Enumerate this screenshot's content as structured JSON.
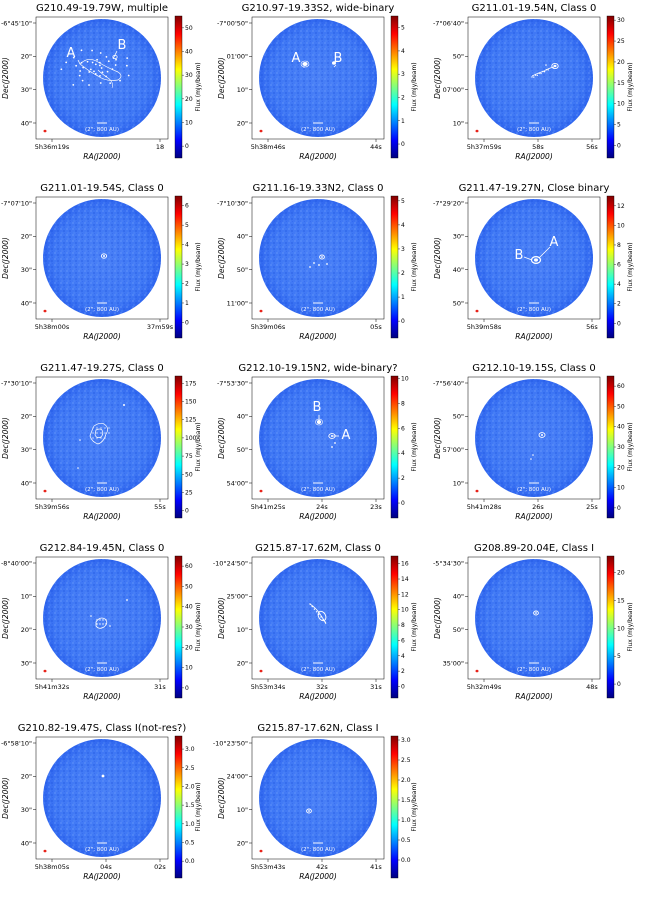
{
  "colors": {
    "disk_base": "#2b5ff2",
    "disk_light": "#4f86f7",
    "contour": "#ffffff",
    "beam": "#e8231a",
    "colormap": [
      "#00007f",
      "#0000ff",
      "#0080ff",
      "#00ffff",
      "#80ff80",
      "#ffff00",
      "#ff8000",
      "#ff0000",
      "#7f0000"
    ]
  },
  "common": {
    "xlabel": "RA(J2000)",
    "ylabel": "Dec(J2000)",
    "cbar_label": "Flux (mJy/beam)",
    "scalebar_label": "(2\"; 800 AU)"
  },
  "chart_data": [
    {
      "type": "heatmap",
      "title": "G210.49-19.79W, multiple",
      "xticks": [
        "5h36m19s",
        "18"
      ],
      "yticks": [
        "-6°45'10\"",
        "20\"",
        "30\"",
        "40\""
      ],
      "cbar_ticks": [
        "0",
        "10",
        "20",
        "30",
        "40",
        "50"
      ],
      "cbar_range": [
        -5,
        55
      ],
      "labels": [
        {
          "text": "A"
        },
        {
          "text": "B"
        }
      ]
    },
    {
      "type": "heatmap",
      "title": "G210.97-19.33S2, wide-binary",
      "xticks": [
        "5h38m46s",
        "44s"
      ],
      "yticks": [
        "-7°00'50\"",
        "01'00\"",
        "10\"",
        "20\""
      ],
      "cbar_ticks": [
        "0",
        "1",
        "2",
        "3",
        "4",
        "5"
      ],
      "cbar_range": [
        -0.6,
        5.5
      ],
      "labels": [
        {
          "text": "A"
        },
        {
          "text": "B"
        }
      ]
    },
    {
      "type": "heatmap",
      "title": "G211.01-19.54N, Class 0",
      "xticks": [
        "5h37m59s",
        "58s",
        "56s"
      ],
      "yticks": [
        "-7°06'40\"",
        "50\"",
        "07'00\"",
        "10\""
      ],
      "cbar_ticks": [
        "0",
        "5",
        "10",
        "15",
        "20",
        "25",
        "30"
      ],
      "cbar_range": [
        -3,
        31
      ],
      "labels": []
    },
    {
      "type": "heatmap",
      "title": "G211.01-19.54S, Class 0",
      "xticks": [
        "5h38m00s",
        "37m59s"
      ],
      "yticks": [
        "-7°07'10\"",
        "20\"",
        "30\"",
        "40\""
      ],
      "cbar_ticks": [
        "0",
        "1",
        "2",
        "3",
        "4",
        "5",
        "6"
      ],
      "cbar_range": [
        -0.8,
        6.5
      ],
      "labels": []
    },
    {
      "type": "heatmap",
      "title": "G211.16-19.33N2, Class 0",
      "xticks": [
        "5h39m06s",
        "05s"
      ],
      "yticks": [
        "-7°10'30\"",
        "40\"",
        "50\"",
        "11'00\""
      ],
      "cbar_ticks": [
        "0",
        "1",
        "2",
        "3",
        "4",
        "5"
      ],
      "cbar_range": [
        -0.7,
        5.2
      ],
      "labels": []
    },
    {
      "type": "heatmap",
      "title": "G211.47-19.27N, Close binary",
      "xticks": [
        "5h39m58s",
        "56s"
      ],
      "yticks": [
        "-7°29'20\"",
        "30\"",
        "40\"",
        "50\""
      ],
      "cbar_ticks": [
        "0",
        "2",
        "4",
        "6",
        "8",
        "10",
        "12"
      ],
      "cbar_range": [
        -1.5,
        13
      ],
      "labels": [
        {
          "text": "B"
        },
        {
          "text": "A"
        }
      ]
    },
    {
      "type": "heatmap",
      "title": "G211.47-19.27S, Class 0",
      "xticks": [
        "5h39m56s",
        "55s"
      ],
      "yticks": [
        "-7°30'10\"",
        "20\"",
        "30\"",
        "40\""
      ],
      "cbar_ticks": [
        "0",
        "25",
        "50",
        "75",
        "100",
        "125",
        "150",
        "175"
      ],
      "cbar_range": [
        -10,
        185
      ],
      "labels": []
    },
    {
      "type": "heatmap",
      "title": "G212.10-19.15N2, wide-binary?",
      "xticks": [
        "5h41m25s",
        "24s",
        "23s"
      ],
      "yticks": [
        "-7°53'30\"",
        "40\"",
        "50\"",
        "54'00\""
      ],
      "cbar_ticks": [
        "0",
        "2",
        "4",
        "6",
        "8",
        "10"
      ],
      "cbar_range": [
        -1.2,
        10.2
      ],
      "labels": [
        {
          "text": "B"
        },
        {
          "text": "A"
        }
      ]
    },
    {
      "type": "heatmap",
      "title": "G212.10-19.15S, Class 0",
      "xticks": [
        "5h41m28s",
        "26s",
        "25s"
      ],
      "yticks": [
        "-7°56'40\"",
        "50\"",
        "57'00\"",
        "10\""
      ],
      "cbar_ticks": [
        "0",
        "10",
        "20",
        "30",
        "40",
        "50",
        "60"
      ],
      "cbar_range": [
        -5,
        65
      ],
      "labels": []
    },
    {
      "type": "heatmap",
      "title": "G212.84-19.45N, Class 0",
      "xticks": [
        "5h41m32s",
        "31s"
      ],
      "yticks": [
        "-8°40'00\"",
        "10\"",
        "20\"",
        "30\""
      ],
      "cbar_ticks": [
        "0",
        "10",
        "20",
        "30",
        "40",
        "50",
        "60"
      ],
      "cbar_range": [
        -5,
        65
      ],
      "labels": []
    },
    {
      "type": "heatmap",
      "title": "G215.87-17.62M, Class 0",
      "xticks": [
        "5h53m34s",
        "32s",
        "31s"
      ],
      "yticks": [
        "-10°24'50\"",
        "25'00\"",
        "10\"",
        "20\""
      ],
      "cbar_ticks": [
        "0",
        "2",
        "4",
        "6",
        "8",
        "10",
        "12",
        "14",
        "16"
      ],
      "cbar_range": [
        -1.5,
        17
      ],
      "labels": []
    },
    {
      "type": "heatmap",
      "title": "G208.89-20.04E, Class I",
      "xticks": [
        "5h32m49s",
        "48s"
      ],
      "yticks": [
        "-5°34'30\"",
        "40\"",
        "50\"",
        "35'00\""
      ],
      "cbar_ticks": [
        "0",
        "5",
        "10",
        "15",
        "20"
      ],
      "cbar_range": [
        -2.5,
        23
      ],
      "labels": []
    },
    {
      "type": "heatmap",
      "title": "G210.82-19.47S, Class I(not-res?)",
      "xticks": [
        "5h38m05s",
        "04s",
        "02s"
      ],
      "yticks": [
        "-6°58'10\"",
        "20\"",
        "30\"",
        "40\""
      ],
      "cbar_ticks": [
        "0.0",
        "0.5",
        "1.0",
        "1.5",
        "2.0",
        "2.5",
        "3.0"
      ],
      "cbar_range": [
        -0.45,
        3.35
      ],
      "labels": []
    },
    {
      "type": "heatmap",
      "title": "G215.87-17.62N, Class I",
      "xticks": [
        "5h53m43s",
        "42s",
        "41s"
      ],
      "yticks": [
        "-10°23'50\"",
        "24'00\"",
        "10\"",
        "20\""
      ],
      "cbar_ticks": [
        "0.0",
        "0.5",
        "1.0",
        "1.5",
        "2.0",
        "2.5",
        "3.0"
      ],
      "cbar_range": [
        -0.45,
        3.1
      ],
      "labels": []
    }
  ]
}
